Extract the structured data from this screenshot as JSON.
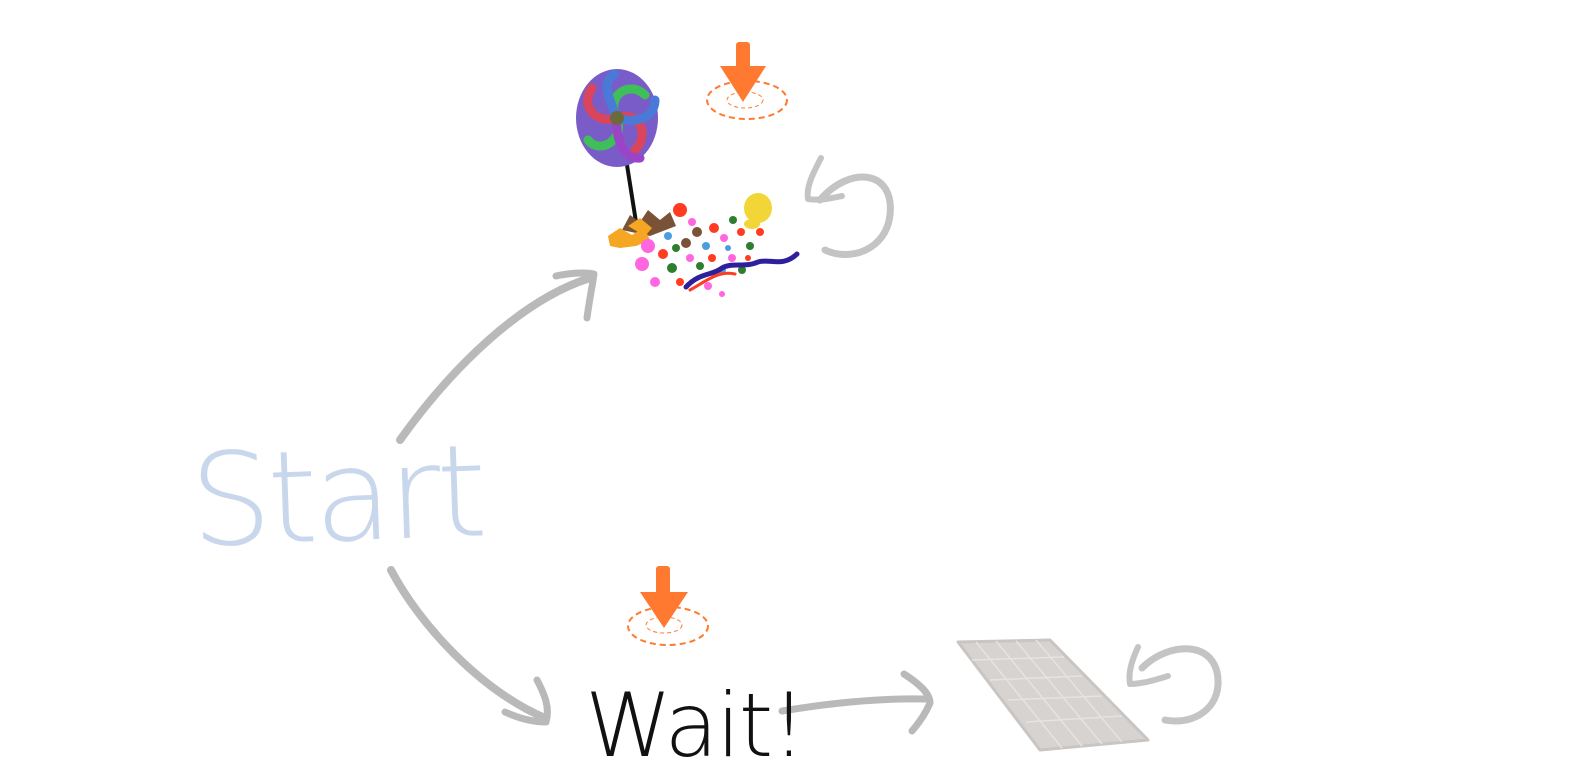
{
  "nodes": {
    "start": {
      "label": "Start",
      "color": "#c9d7ec"
    },
    "wait": {
      "label": "Wait!",
      "color": "#111111"
    }
  },
  "colors": {
    "arrow": "#b9b9b9",
    "drop_marker": "#ff7a30",
    "chocolate": "#d6d3d1"
  },
  "icons": [
    "lollipop-icon",
    "candy-pile-icon",
    "chocolate-bar-icon",
    "drop-here-marker-icon",
    "loop-arrow-icon"
  ]
}
